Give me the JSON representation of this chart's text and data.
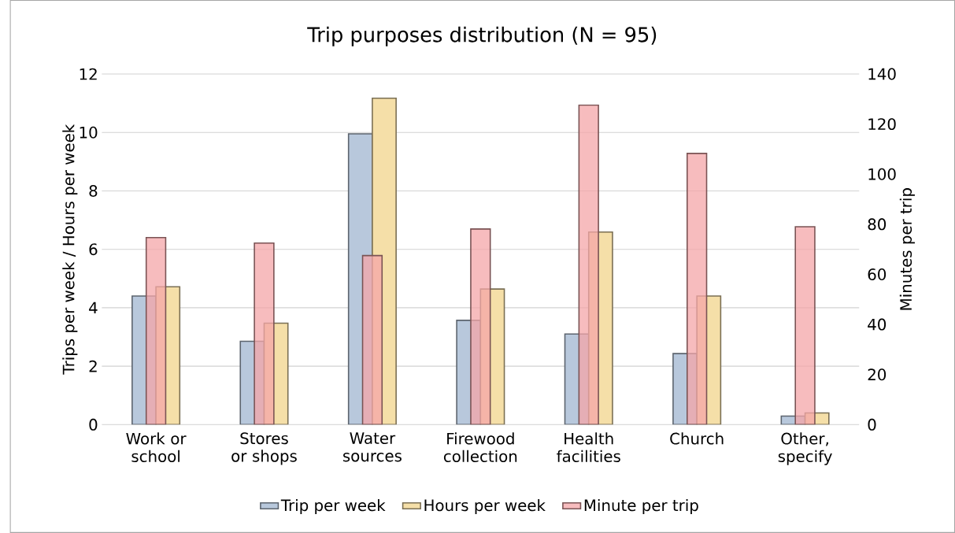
{
  "chart_data": {
    "type": "bar",
    "title": "Trip purposes distribution (N = 95)",
    "categories": [
      "Work or school",
      "Stores or shops",
      "Water sources",
      "Firewood collection",
      "Health facilities",
      "Church",
      "Other, specify"
    ],
    "series": [
      {
        "name": "Trip per week",
        "color": "#b8c8dc",
        "values": [
          4.4,
          2.85,
          9.95,
          3.57,
          3.1,
          2.43,
          0.29
        ]
      },
      {
        "name": "Hours per week",
        "color": "#f5dfa8",
        "values": [
          4.72,
          3.47,
          11.17,
          4.64,
          6.59,
          4.4,
          0.4
        ]
      },
      {
        "name": "Minute per trip",
        "color": "#f4a6a8",
        "axis": "y2",
        "values": [
          74.7,
          72.5,
          67.5,
          78.1,
          127.6,
          108.3,
          79
        ]
      }
    ],
    "ylabel": "Trips per week / Hours per week",
    "y2label": "Minutes per trip",
    "ylim": [
      0,
      12
    ],
    "yticks": [
      0,
      2,
      4,
      6,
      8,
      10,
      12
    ],
    "y2lim": [
      0,
      140
    ],
    "y2ticks": [
      0,
      20,
      40,
      60,
      80,
      100,
      120,
      140
    ],
    "grid": true,
    "legend": "bottom"
  }
}
